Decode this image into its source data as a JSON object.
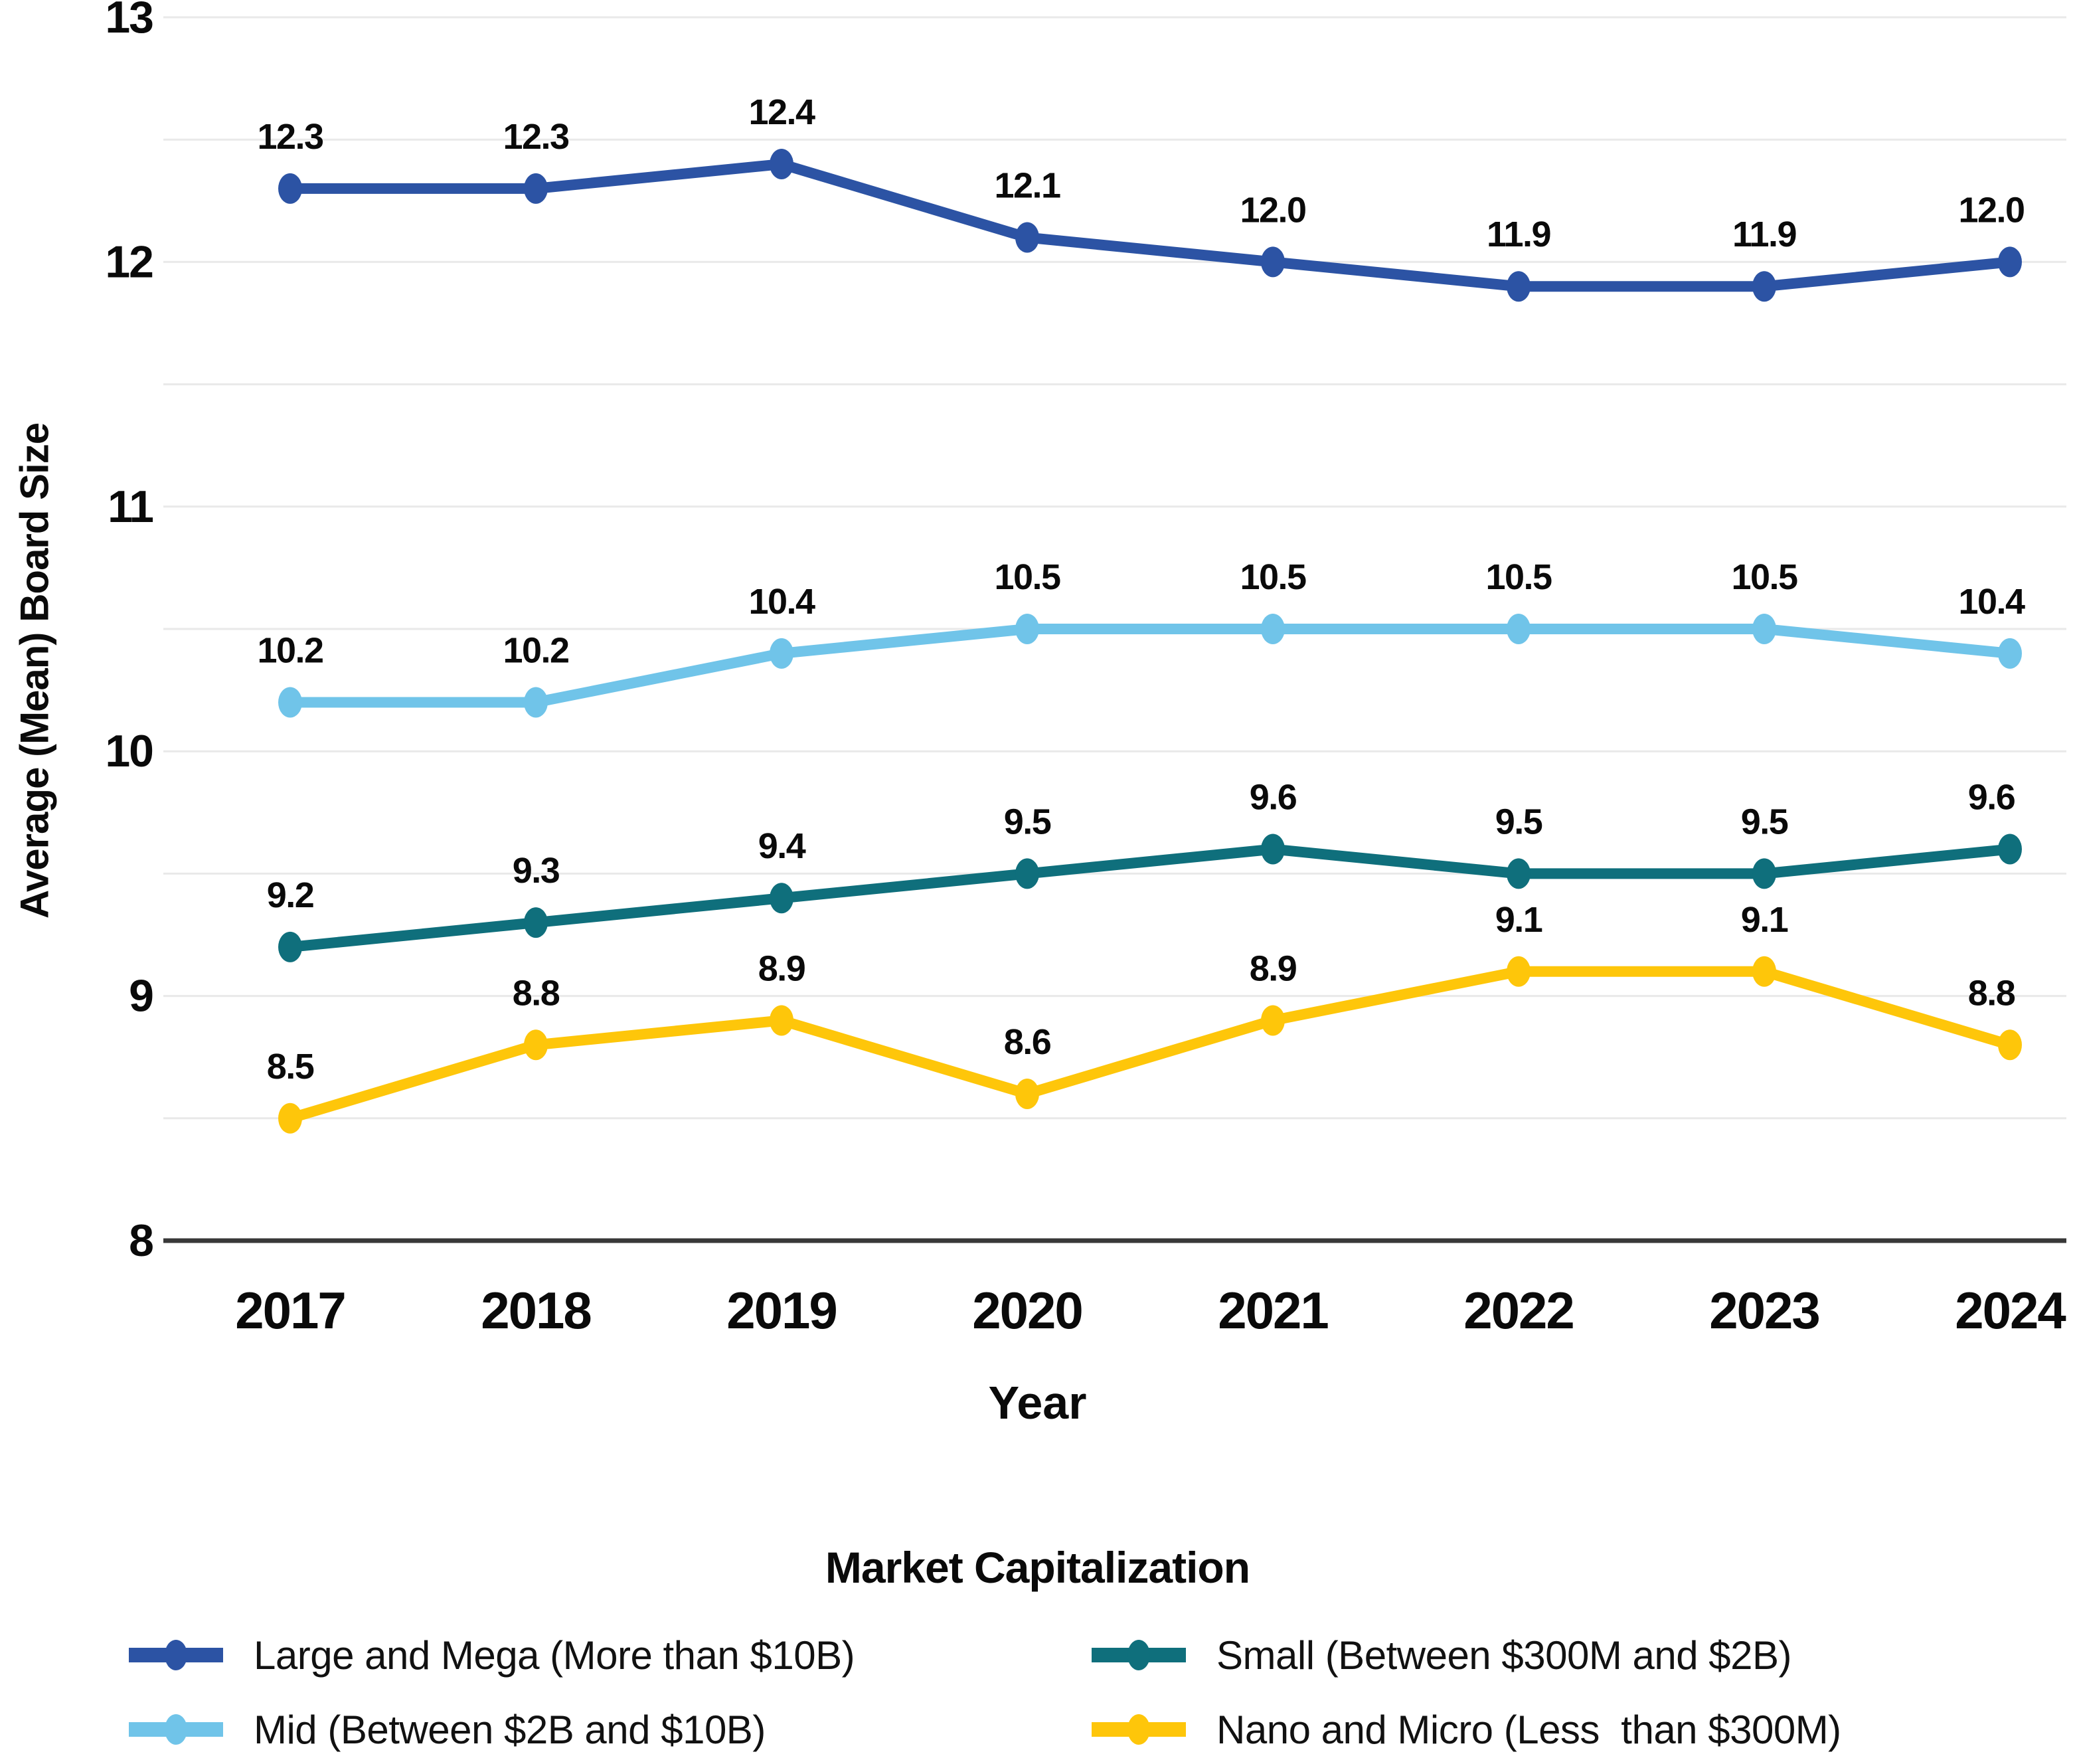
{
  "figure": {
    "background": "#ffffff"
  },
  "chart_data": {
    "type": "line",
    "title": "",
    "xlabel": "Year",
    "ylabel": "Average (Mean) Board Size",
    "x": [
      "2017",
      "2018",
      "2019",
      "2020",
      "2021",
      "2022",
      "2023",
      "2024"
    ],
    "ylim": [
      8,
      13
    ],
    "yticks": [
      "8",
      "9",
      "10",
      "11",
      "12",
      "13"
    ],
    "gridline_step": 0.5,
    "grid": true,
    "legend_position": "bottom",
    "legend_title": "Market Capitalization",
    "colors": {
      "grid": "#e9e9e9",
      "axis": "#383838",
      "text": "#0a0a0a"
    },
    "series": [
      {
        "name": "Large and Mega (More than $10B)",
        "color": "#2C53A4",
        "values": [
          12.3,
          12.3,
          12.4,
          12.1,
          12.0,
          11.9,
          11.9,
          12.0
        ]
      },
      {
        "name": "Mid (Between $2B and $10B)",
        "color": "#70C4E9",
        "values": [
          10.2,
          10.2,
          10.4,
          10.5,
          10.5,
          10.5,
          10.5,
          10.4
        ]
      },
      {
        "name": "Small (Between $300M and $2B)",
        "color": "#0F6F7C",
        "values": [
          9.2,
          9.3,
          9.4,
          9.5,
          9.6,
          9.5,
          9.5,
          9.6
        ]
      },
      {
        "name": "Nano and Micro (Less  than $300M)",
        "color": "#FEC60A",
        "values": [
          8.5,
          8.8,
          8.9,
          8.6,
          8.9,
          9.1,
          9.1,
          8.8
        ]
      }
    ]
  }
}
